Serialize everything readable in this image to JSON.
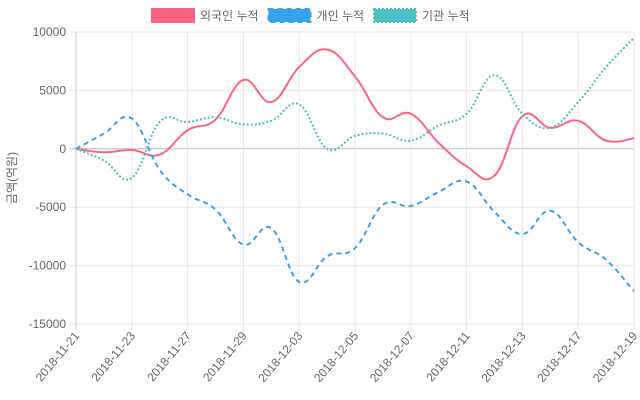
{
  "chart_data": {
    "type": "line",
    "ylabel": "금액(억원)",
    "ylim": [
      -15000,
      10000
    ],
    "yticks": [
      "10000",
      "5000",
      "0",
      "-5000",
      "-10000",
      "-15000"
    ],
    "ytick_values": [
      10000,
      5000,
      0,
      -5000,
      -10000,
      -15000
    ],
    "grid": true,
    "legend": "top",
    "x": [
      "2018-11-21",
      "2018-11-22",
      "2018-11-23",
      "2018-11-26",
      "2018-11-27",
      "2018-11-28",
      "2018-11-29",
      "2018-11-30",
      "2018-12-03",
      "2018-12-04",
      "2018-12-05",
      "2018-12-06",
      "2018-12-07",
      "2018-12-10",
      "2018-12-11",
      "2018-12-12",
      "2018-12-13",
      "2018-12-14",
      "2018-12-17",
      "2018-12-18",
      "2018-12-19"
    ],
    "xtick_labels": [
      "2018-11-21",
      "2018-11-23",
      "2018-11-27",
      "2018-11-29",
      "2018-12-03",
      "2018-12-05",
      "2018-12-07",
      "2018-12-11",
      "2018-12-13",
      "2018-12-17",
      "2018-12-19"
    ],
    "series": [
      {
        "name": "외국인 누적",
        "color": "#ff6384",
        "style": "solid",
        "values": [
          0,
          -300,
          -100,
          -500,
          1600,
          2500,
          5900,
          4000,
          7000,
          8500,
          6200,
          2700,
          3000,
          500,
          -1500,
          -2300,
          2800,
          1800,
          2400,
          700,
          900
        ]
      },
      {
        "name": "개인 누적",
        "color": "#36a2eb",
        "style": "dashed",
        "values": [
          0,
          1300,
          2600,
          -1800,
          -3900,
          -5200,
          -8200,
          -6800,
          -11400,
          -9200,
          -8500,
          -4800,
          -4900,
          -3700,
          -2800,
          -5400,
          -7300,
          -5300,
          -8000,
          -9500,
          -12200
        ]
      },
      {
        "name": "기관 누적",
        "color": "#4bc0c0",
        "style": "dotted",
        "values": [
          0,
          -1000,
          -2500,
          2300,
          2300,
          2700,
          2100,
          2400,
          3800,
          0,
          1100,
          1300,
          700,
          2000,
          3000,
          6300,
          3000,
          1800,
          4000,
          7000,
          9500
        ]
      }
    ]
  }
}
